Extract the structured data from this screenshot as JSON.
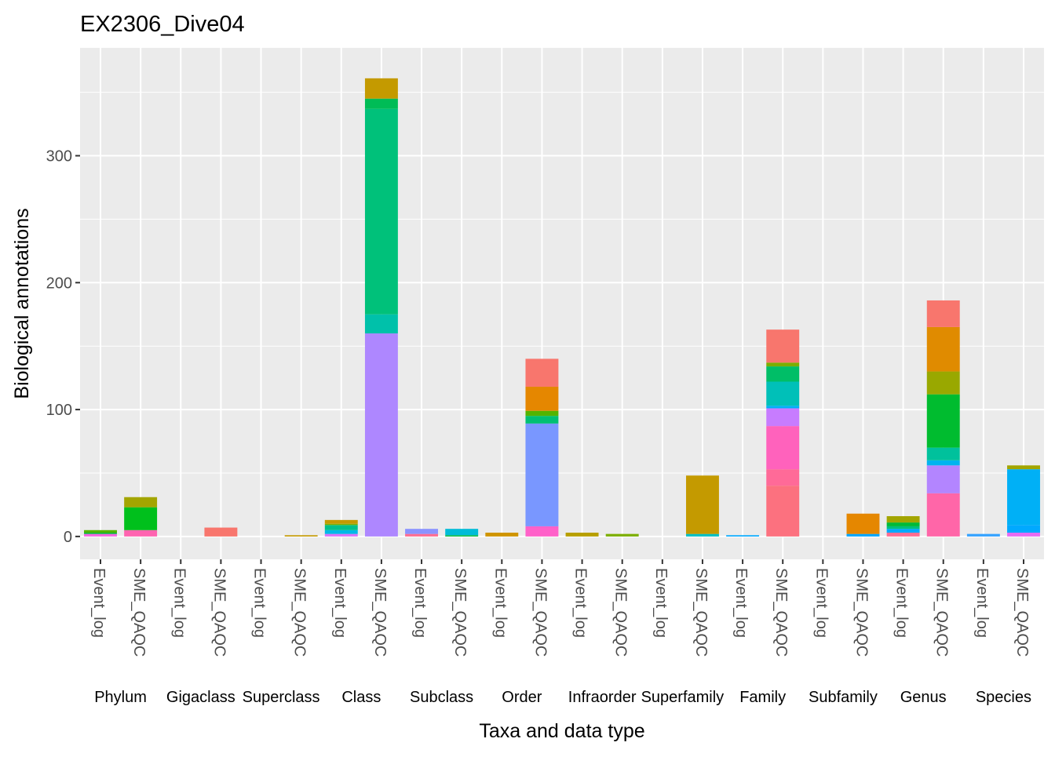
{
  "chart_data": {
    "type": "bar",
    "stacked": true,
    "title": "EX2306_Dive04",
    "xlabel": "Taxa and data type",
    "ylabel": "Biological annotations",
    "ylim": [
      -18,
      385
    ],
    "y_ticks": [
      0,
      100,
      200,
      300
    ],
    "grid": true,
    "legend": "none",
    "facets": [
      "Phylum",
      "Gigaclass",
      "Superclass",
      "Class",
      "Subclass",
      "Order",
      "Infraorder",
      "Superfamily",
      "Family",
      "Subfamily",
      "Genus",
      "Species"
    ],
    "data_types": [
      "Event_log",
      "SME_QAQC"
    ],
    "bars": [
      {
        "facet": "Phylum",
        "type": "Event_log",
        "segments": [
          {
            "value": 2,
            "color": "#F564E3"
          },
          {
            "value": 1,
            "color": "#00BA38"
          },
          {
            "value": 2,
            "color": "#53B400"
          }
        ]
      },
      {
        "facet": "Phylum",
        "type": "SME_QAQC",
        "segments": [
          {
            "value": 5,
            "color": "#FF64B0"
          },
          {
            "value": 18,
            "color": "#00C01C"
          },
          {
            "value": 8,
            "color": "#A3A500"
          }
        ]
      },
      {
        "facet": "Gigaclass",
        "type": "Event_log",
        "segments": []
      },
      {
        "facet": "Gigaclass",
        "type": "SME_QAQC",
        "segments": [
          {
            "value": 7,
            "color": "#F8766D"
          }
        ]
      },
      {
        "facet": "Superclass",
        "type": "Event_log",
        "segments": []
      },
      {
        "facet": "Superclass",
        "type": "SME_QAQC",
        "segments": [
          {
            "value": 1,
            "color": "#C49A00"
          }
        ]
      },
      {
        "facet": "Class",
        "type": "Event_log",
        "segments": [
          {
            "value": 2,
            "color": "#DB72FB"
          },
          {
            "value": 3,
            "color": "#00B8E7"
          },
          {
            "value": 4,
            "color": "#00C08B"
          },
          {
            "value": 1,
            "color": "#7CAE00"
          },
          {
            "value": 3,
            "color": "#C49A00"
          }
        ]
      },
      {
        "facet": "Class",
        "type": "SME_QAQC",
        "segments": [
          {
            "value": 160,
            "color": "#AE87FF"
          },
          {
            "value": 15,
            "color": "#00C1AA"
          },
          {
            "value": 162,
            "color": "#00C17A"
          },
          {
            "value": 8,
            "color": "#00BC56"
          },
          {
            "value": 16,
            "color": "#C49A00"
          }
        ]
      },
      {
        "facet": "Subclass",
        "type": "Event_log",
        "segments": [
          {
            "value": 2,
            "color": "#FF6C91"
          },
          {
            "value": 4,
            "color": "#8B93FF"
          }
        ]
      },
      {
        "facet": "Subclass",
        "type": "SME_QAQC",
        "segments": [
          {
            "value": 1,
            "color": "#00BA38"
          },
          {
            "value": 5,
            "color": "#00BCD8"
          }
        ]
      },
      {
        "facet": "Order",
        "type": "Event_log",
        "segments": [
          {
            "value": 3,
            "color": "#CF9400"
          }
        ]
      },
      {
        "facet": "Order",
        "type": "SME_QAQC",
        "segments": [
          {
            "value": 8,
            "color": "#FF61C9"
          },
          {
            "value": 81,
            "color": "#7997FF"
          },
          {
            "value": 6,
            "color": "#00BF74"
          },
          {
            "value": 4,
            "color": "#53B400"
          },
          {
            "value": 19,
            "color": "#E58700"
          },
          {
            "value": 22,
            "color": "#F8766D"
          }
        ]
      },
      {
        "facet": "Infraorder",
        "type": "Event_log",
        "segments": [
          {
            "value": 3,
            "color": "#B79F00"
          }
        ]
      },
      {
        "facet": "Infraorder",
        "type": "SME_QAQC",
        "segments": [
          {
            "value": 2,
            "color": "#7CAE00"
          }
        ]
      },
      {
        "facet": "Superfamily",
        "type": "Event_log",
        "segments": []
      },
      {
        "facet": "Superfamily",
        "type": "SME_QAQC",
        "segments": [
          {
            "value": 2,
            "color": "#00BFC4"
          },
          {
            "value": 46,
            "color": "#C49A00"
          }
        ]
      },
      {
        "facet": "Family",
        "type": "Event_log",
        "segments": [
          {
            "value": 1,
            "color": "#00A9FF"
          }
        ]
      },
      {
        "facet": "Family",
        "type": "SME_QAQC",
        "segments": [
          {
            "value": 40,
            "color": "#FC717F"
          },
          {
            "value": 13,
            "color": "#FF6A98"
          },
          {
            "value": 34,
            "color": "#FF62BC"
          },
          {
            "value": 14,
            "color": "#C77CFF"
          },
          {
            "value": 2,
            "color": "#00B0F6"
          },
          {
            "value": 19,
            "color": "#00C0B8"
          },
          {
            "value": 12,
            "color": "#00BE67"
          },
          {
            "value": 3,
            "color": "#7CAE00"
          },
          {
            "value": 26,
            "color": "#F8766D"
          }
        ]
      },
      {
        "facet": "Subfamily",
        "type": "Event_log",
        "segments": []
      },
      {
        "facet": "Subfamily",
        "type": "SME_QAQC",
        "segments": [
          {
            "value": 2,
            "color": "#00A5FF"
          },
          {
            "value": 16,
            "color": "#E58700"
          }
        ]
      },
      {
        "facet": "Genus",
        "type": "Event_log",
        "segments": [
          {
            "value": 3,
            "color": "#FF6C91"
          },
          {
            "value": 3,
            "color": "#00A9FF"
          },
          {
            "value": 2,
            "color": "#00BF7D"
          },
          {
            "value": 3,
            "color": "#00BA38"
          },
          {
            "value": 5,
            "color": "#A3A500"
          }
        ]
      },
      {
        "facet": "Genus",
        "type": "SME_QAQC",
        "segments": [
          {
            "value": 34,
            "color": "#FF66A8"
          },
          {
            "value": 22,
            "color": "#B385FF"
          },
          {
            "value": 4,
            "color": "#00B4EF"
          },
          {
            "value": 10,
            "color": "#00C19C"
          },
          {
            "value": 42,
            "color": "#00BC2F"
          },
          {
            "value": 18,
            "color": "#99A800"
          },
          {
            "value": 35,
            "color": "#E08B00"
          },
          {
            "value": 21,
            "color": "#F8766D"
          }
        ]
      },
      {
        "facet": "Species",
        "type": "Event_log",
        "segments": [
          {
            "value": 2,
            "color": "#35A2FF"
          }
        ]
      },
      {
        "facet": "Species",
        "type": "SME_QAQC",
        "segments": [
          {
            "value": 3,
            "color": "#E76BF3"
          },
          {
            "value": 6,
            "color": "#00A9FF"
          },
          {
            "value": 44,
            "color": "#00B0F6"
          },
          {
            "value": 3,
            "color": "#A3A500"
          }
        ]
      }
    ]
  }
}
